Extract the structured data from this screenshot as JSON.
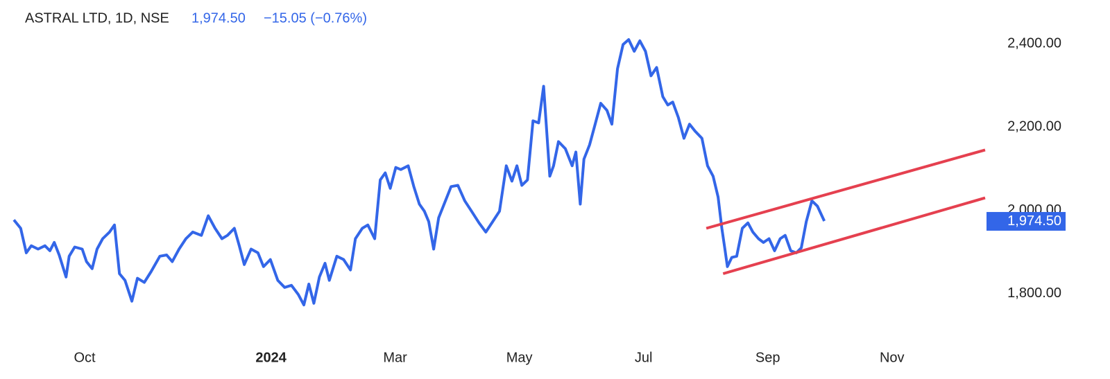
{
  "chart_data": {
    "type": "line",
    "title": "ASTRAL LTD, 1D, NSE",
    "price": "1,974.50",
    "change": "−15.05 (−0.76%)",
    "color": "#3366e8",
    "x": [
      -1.14,
      -1.03,
      -0.94,
      -0.86,
      -0.75,
      -0.64,
      -0.56,
      -0.49,
      -0.41,
      -0.3,
      -0.25,
      -0.16,
      -0.04,
      0.03,
      0.12,
      0.2,
      0.29,
      0.4,
      0.48,
      0.56,
      0.65,
      0.76,
      0.85,
      0.96,
      1.07,
      1.21,
      1.32,
      1.41,
      1.52,
      1.63,
      1.74,
      1.88,
      1.99,
      2.1,
      2.21,
      2.3,
      2.41,
      2.49,
      2.57,
      2.68,
      2.79,
      2.88,
      2.99,
      3.11,
      3.22,
      3.33,
      3.44,
      3.53,
      3.61,
      3.69,
      3.78,
      3.87,
      3.94,
      4.06,
      4.17,
      4.28,
      4.36,
      4.47,
      4.56,
      4.67,
      4.76,
      4.84,
      4.92,
      5.01,
      5.09,
      5.21,
      5.3,
      5.39,
      5.47,
      5.54,
      5.62,
      5.7,
      5.81,
      5.9,
      6.01,
      6.12,
      6.23,
      6.35,
      6.46,
      6.57,
      6.68,
      6.79,
      6.88,
      6.96,
      7.04,
      7.13,
      7.22,
      7.31,
      7.39,
      7.49,
      7.55,
      7.63,
      7.74,
      7.85,
      7.91,
      7.98,
      8.04,
      8.13,
      8.22,
      8.31,
      8.41,
      8.49,
      8.58,
      8.67,
      8.76,
      8.85,
      8.94,
      9.03,
      9.12,
      9.21,
      9.31,
      9.39,
      9.47,
      9.56,
      9.65,
      9.74,
      9.83,
      9.94,
      10.03,
      10.12,
      10.2,
      10.26,
      10.31,
      10.35,
      10.42,
      10.5,
      10.59,
      10.68,
      10.76,
      10.85,
      10.93,
      11.02,
      11.11,
      11.2,
      11.28,
      11.37,
      11.46,
      11.54,
      11.62,
      11.71,
      11.8,
      11.91
    ],
    "values": [
      1977,
      1957,
      1898,
      1915,
      1907,
      1915,
      1903,
      1923,
      1893,
      1840,
      1890,
      1912,
      1907,
      1877,
      1860,
      1907,
      1932,
      1948,
      1965,
      1848,
      1832,
      1782,
      1837,
      1827,
      1853,
      1890,
      1893,
      1877,
      1907,
      1932,
      1948,
      1940,
      1987,
      1957,
      1932,
      1940,
      1957,
      1915,
      1870,
      1907,
      1898,
      1865,
      1882,
      1832,
      1815,
      1820,
      1798,
      1773,
      1823,
      1777,
      1840,
      1873,
      1832,
      1890,
      1882,
      1857,
      1932,
      1957,
      1965,
      1932,
      2073,
      2090,
      2053,
      2103,
      2098,
      2107,
      2057,
      2015,
      1998,
      1973,
      1907,
      1982,
      2023,
      2057,
      2060,
      2023,
      1998,
      1970,
      1948,
      1973,
      1998,
      2107,
      2070,
      2107,
      2060,
      2073,
      2215,
      2210,
      2298,
      2082,
      2107,
      2165,
      2148,
      2107,
      2140,
      2015,
      2123,
      2157,
      2207,
      2257,
      2240,
      2207,
      2340,
      2398,
      2410,
      2382,
      2407,
      2382,
      2323,
      2343,
      2273,
      2253,
      2260,
      2223,
      2173,
      2207,
      2190,
      2173,
      2107,
      2082,
      2032,
      1957,
      1907,
      1865,
      1887,
      1890,
      1957,
      1970,
      1948,
      1932,
      1923,
      1932,
      1903,
      1932,
      1940,
      1903,
      1898,
      1910,
      1973,
      2023,
      2010,
      1974.5
    ],
    "last_value_label": {
      "value": 1974.5,
      "label": "1,974.50"
    },
    "trendlines": [
      {
        "color": "#e5404f",
        "x": [
          10.01,
          14.5
        ],
        "values": [
          1957,
          2145
        ]
      },
      {
        "color": "#e5404f",
        "x": [
          10.28,
          14.5
        ],
        "values": [
          1848,
          2030
        ]
      }
    ],
    "xlim": [
      -1.14,
      14.5
    ],
    "xticks": [
      {
        "value": 0,
        "label": "Oct"
      },
      {
        "value": 3,
        "label": "2024"
      },
      {
        "value": 5,
        "label": "Mar"
      },
      {
        "value": 7,
        "label": "May"
      },
      {
        "value": 9,
        "label": "Jul"
      },
      {
        "value": 11,
        "label": "Sep"
      },
      {
        "value": 13,
        "label": "Nov"
      }
    ],
    "ylim": [
      1690,
      2505
    ],
    "yticks": [
      {
        "value": 1800,
        "label": "1,800.00"
      },
      {
        "value": 2000,
        "label": "2,000.00"
      },
      {
        "value": 2200,
        "label": "2,200.00"
      },
      {
        "value": 2400,
        "label": "2,400.00"
      }
    ]
  }
}
